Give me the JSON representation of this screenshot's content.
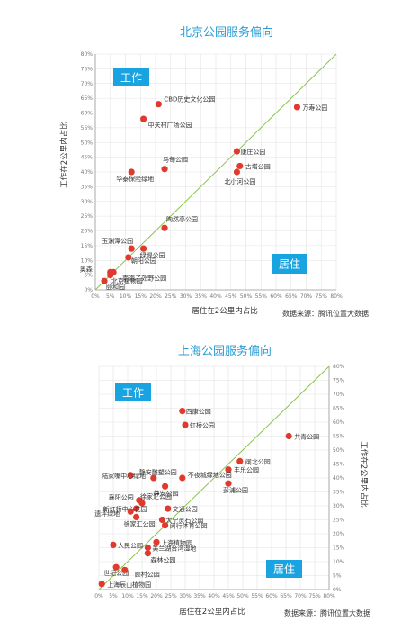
{
  "colors": {
    "title": "#2e9fd6",
    "point": "#e03a2e",
    "diagonal": "#8cc34a",
    "badge": "#19a3e0",
    "grid": "#e3e3e3"
  },
  "chart_data": [
    {
      "type": "scatter",
      "title": "北京公园服务偏向",
      "xlabel": "居住在2公里内占比",
      "ylabel": "工作在2公里内占比",
      "source": "数据来源：腾讯位置大数据",
      "xlim": [
        0,
        80
      ],
      "ylim": [
        0,
        80
      ],
      "x_ticks": [
        "0%",
        "5%",
        "10%",
        "15%",
        "20%",
        "25%",
        "30%",
        "35%",
        "40%",
        "45%",
        "50%",
        "55%",
        "60%",
        "65%",
        "70%",
        "75%",
        "80%"
      ],
      "y_ticks": [
        "0%",
        "5%",
        "10%",
        "15%",
        "20%",
        "25%",
        "30%",
        "35%",
        "40%",
        "45%",
        "50%",
        "55%",
        "60%",
        "65%",
        "70%",
        "75%",
        "80%"
      ],
      "grid": true,
      "regions": {
        "upper": "工作",
        "lower": "居住"
      },
      "points": [
        {
          "label": "CBD历史文化公园",
          "x": 21,
          "y": 63
        },
        {
          "label": "中关村广场公园",
          "x": 16,
          "y": 58
        },
        {
          "label": "万寿公园",
          "x": 67,
          "y": 62
        },
        {
          "label": "马甸公园",
          "x": 23,
          "y": 41
        },
        {
          "label": "华泰保险绿地",
          "x": 12,
          "y": 40
        },
        {
          "label": "康庄公园",
          "x": 47,
          "y": 47
        },
        {
          "label": "古塔公园",
          "x": 48,
          "y": 42
        },
        {
          "label": "北小河公园",
          "x": 47,
          "y": 40
        },
        {
          "label": "陶然亭公园",
          "x": 23,
          "y": 21
        },
        {
          "label": "玉渊潭公园",
          "x": 12,
          "y": 14
        },
        {
          "label": "绿堤公园",
          "x": 16,
          "y": 14
        },
        {
          "label": "奥森",
          "x": 5,
          "y": 6
        },
        {
          "label": "朝阳公园",
          "x": 11,
          "y": 11
        },
        {
          "label": "南海子郊野公园",
          "x": 6,
          "y": 6
        },
        {
          "label": "北京植物园",
          "x": 5,
          "y": 5
        },
        {
          "label": "颐和园",
          "x": 3,
          "y": 3
        }
      ]
    },
    {
      "type": "scatter",
      "title": "上海公园服务偏向",
      "xlabel": "居住在2公里内占比",
      "ylabel": "工作在2公里内占比",
      "source": "数据来源：腾讯位置大数据",
      "xlim": [
        0,
        80
      ],
      "ylim": [
        0,
        80
      ],
      "x_ticks": [
        "0%",
        "5%",
        "10%",
        "15%",
        "20%",
        "25%",
        "30%",
        "35%",
        "40%",
        "45%",
        "50%",
        "55%",
        "60%",
        "65%",
        "70%",
        "75%",
        "80%"
      ],
      "y_ticks": [
        "0%",
        "5%",
        "10%",
        "15%",
        "20%",
        "25%",
        "30%",
        "35%",
        "40%",
        "45%",
        "50%",
        "55%",
        "60%",
        "65%",
        "70%",
        "75%",
        "80%"
      ],
      "grid": true,
      "regions": {
        "upper": "工作",
        "lower": "居住"
      },
      "points": [
        {
          "label": "西康公园",
          "x": 29,
          "y": 64
        },
        {
          "label": "虹桥公园",
          "x": 30,
          "y": 59
        },
        {
          "label": "共青公园",
          "x": 66,
          "y": 55
        },
        {
          "label": "闸北公园",
          "x": 49,
          "y": 46
        },
        {
          "label": "丰乐公园",
          "x": 45,
          "y": 43
        },
        {
          "label": "陆家嘴中心绿地",
          "x": 11,
          "y": 41
        },
        {
          "label": "静安雕塑公园",
          "x": 19,
          "y": 40
        },
        {
          "label": "不夜城绿地公园",
          "x": 29,
          "y": 40
        },
        {
          "label": "彭浦公园",
          "x": 45,
          "y": 38
        },
        {
          "label": "静安公园",
          "x": 23,
          "y": 37
        },
        {
          "label": "襄阳公园",
          "x": 14,
          "y": 32
        },
        {
          "label": "徐家汇公园",
          "x": 15,
          "y": 31
        },
        {
          "label": "新虹桥中心花园",
          "x": 13,
          "y": 29
        },
        {
          "label": "遗坪绿地",
          "x": 11,
          "y": 28
        },
        {
          "label": "交通公园",
          "x": 24,
          "y": 29
        },
        {
          "label": "大宁灵石公园",
          "x": 22,
          "y": 25
        },
        {
          "label": "徐家汇公园",
          "x": 13,
          "y": 26
        },
        {
          "label": "闵行体育公园",
          "x": 23,
          "y": 23
        },
        {
          "label": "上海植物园",
          "x": 20,
          "y": 17
        },
        {
          "label": "人民公园",
          "x": 5,
          "y": 16
        },
        {
          "label": "美兰湖台湾湿地",
          "x": 17,
          "y": 15
        },
        {
          "label": "森林公园",
          "x": 17,
          "y": 13
        },
        {
          "label": "世纪公园",
          "x": 6,
          "y": 8
        },
        {
          "label": "顾村公园",
          "x": 9,
          "y": 7
        },
        {
          "label": "上海辰山植物园",
          "x": 1,
          "y": 2
        }
      ]
    }
  ]
}
